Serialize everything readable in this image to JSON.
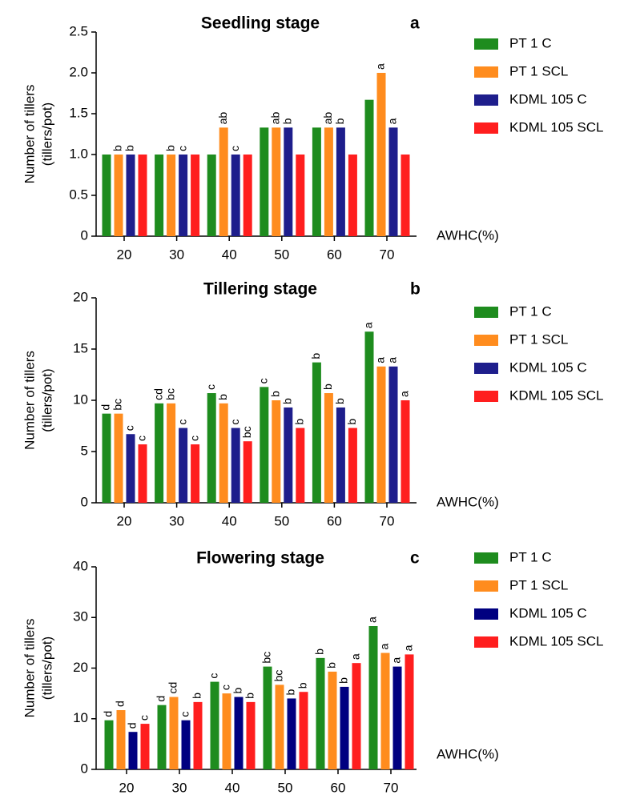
{
  "chart_data": [
    {
      "type": "bar",
      "title": "Seedling stage",
      "panel_label": "a",
      "xlabel": "AWHC(%)",
      "ylabel": "Number of tillers",
      "ylabel_unit": "(tillers/pot)",
      "categories": [
        "20",
        "30",
        "40",
        "50",
        "60",
        "70"
      ],
      "ylim": [
        0,
        2.5
      ],
      "yticks": [
        0,
        0.5,
        {
          "value": 1,
          "label": "1.0"
        },
        1.5,
        {
          "value": 2,
          "label": "2.0"
        },
        2.5
      ],
      "series": [
        {
          "name": "PT 1 C",
          "color": "#1e8c1e",
          "values": [
            1,
            1,
            1,
            1.33,
            1.33,
            1.67
          ],
          "letters": [
            null,
            null,
            null,
            null,
            null,
            null
          ]
        },
        {
          "name": "PT 1 SCL",
          "color": "#ff8c1e",
          "values": [
            1,
            1,
            1.33,
            1.33,
            1.33,
            2
          ],
          "letters": [
            "b",
            "b",
            "ab",
            "ab",
            "ab",
            "a"
          ]
        },
        {
          "name": "KDML 105 C",
          "color": "#1e1e8c",
          "values": [
            1,
            1,
            1,
            1.33,
            1.33,
            1.33
          ],
          "letters": [
            "b",
            "c",
            "c",
            "b",
            "b",
            "a"
          ]
        },
        {
          "name": "KDML 105 SCL",
          "color": "#ff1e1e",
          "values": [
            1,
            1,
            1,
            1,
            1,
            1
          ],
          "letters": [
            null,
            null,
            null,
            null,
            null,
            null
          ]
        }
      ]
    },
    {
      "type": "bar",
      "title": "Tillering stage",
      "panel_label": "b",
      "xlabel": "AWHC(%)",
      "ylabel": "Number of tillers",
      "ylabel_unit": "(tillers/pot)",
      "categories": [
        "20",
        "30",
        "40",
        "50",
        "60",
        "70"
      ],
      "ylim": [
        0,
        20
      ],
      "yticks": [
        0,
        5,
        10,
        15,
        20
      ],
      "series": [
        {
          "name": "PT 1 C",
          "color": "#1e8c1e",
          "values": [
            8.7,
            9.7,
            10.7,
            11.3,
            13.7,
            16.7
          ],
          "letters": [
            "d",
            "cd",
            "c",
            "c",
            "b",
            "a"
          ]
        },
        {
          "name": "PT 1 SCL",
          "color": "#ff8c1e",
          "values": [
            8.7,
            9.7,
            9.7,
            10,
            10.7,
            13.3
          ],
          "letters": [
            "bc",
            "bc",
            "b",
            "b",
            "b",
            "a"
          ]
        },
        {
          "name": "KDML 105 C",
          "color": "#1e1e8c",
          "values": [
            6.7,
            7.3,
            7.3,
            9.3,
            9.3,
            13.3
          ],
          "letters": [
            "c",
            "c",
            "c",
            "b",
            "b",
            "a"
          ]
        },
        {
          "name": "KDML 105 SCL",
          "color": "#ff1e1e",
          "values": [
            5.7,
            5.7,
            6,
            7.3,
            7.3,
            10
          ],
          "letters": [
            "c",
            "c",
            "bc",
            "b",
            "b",
            "a"
          ]
        }
      ]
    },
    {
      "type": "bar",
      "title": "Flowering stage",
      "panel_label": "c",
      "xlabel": "AWHC(%)",
      "ylabel": "Number of tillers",
      "ylabel_unit": "(tillers/pot)",
      "categories": [
        "20",
        "30",
        "40",
        "50",
        "60",
        "70"
      ],
      "ylim": [
        0,
        40
      ],
      "yticks": [
        0,
        10,
        20,
        30,
        40
      ],
      "series": [
        {
          "name": "PT 1 C",
          "color": "#1e8c1e",
          "values": [
            9.7,
            12.7,
            17.3,
            20.3,
            22,
            28.3
          ],
          "letters": [
            "d",
            "d",
            "c",
            "bc",
            "b",
            "a"
          ]
        },
        {
          "name": "PT 1 SCL",
          "color": "#ff8c1e",
          "values": [
            11.7,
            14.3,
            15,
            16.7,
            19.3,
            23
          ],
          "letters": [
            "d",
            "cd",
            "c",
            "bc",
            "b",
            "a"
          ]
        },
        {
          "name": "KDML 105 C",
          "color": "#000080",
          "values": [
            7.4,
            9.7,
            14.3,
            14,
            16.3,
            20.3
          ],
          "letters": [
            "d",
            "c",
            "b",
            "b",
            "b",
            "a"
          ]
        },
        {
          "name": "KDML 105 SCL",
          "color": "#ff1e1e",
          "values": [
            9,
            13.3,
            13.3,
            15.3,
            21,
            22.7
          ],
          "letters": [
            "c",
            "b",
            "b",
            "b",
            "a",
            "a"
          ]
        }
      ]
    }
  ]
}
